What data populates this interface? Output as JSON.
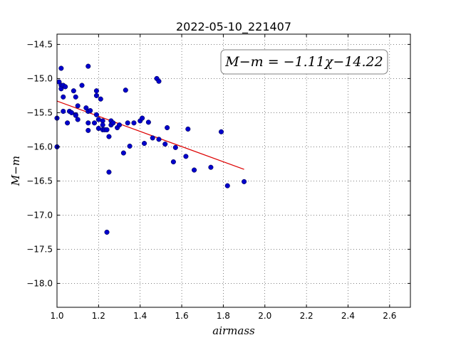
{
  "chart_data": {
    "type": "scatter",
    "title": "2022-05-10_221407",
    "xlabel": "airmass",
    "ylabel": "M−m",
    "xlim": [
      1.0,
      2.7
    ],
    "ylim": [
      -18.35,
      -14.35
    ],
    "y_inverted": true,
    "grid": true,
    "grid_style": "dotted",
    "x_ticks": [
      "1.0",
      "1.2",
      "1.4",
      "1.6",
      "1.8",
      "2.0",
      "2.2",
      "2.4",
      "2.6"
    ],
    "x_tick_values": [
      1.0,
      1.2,
      1.4,
      1.6,
      1.8,
      2.0,
      2.2,
      2.4,
      2.6
    ],
    "y_ticks": [
      "−14.5",
      "−15.0",
      "−15.5",
      "−16.0",
      "−16.5",
      "−17.0",
      "−17.5",
      "−18.0"
    ],
    "y_tick_values": [
      -14.5,
      -15.0,
      -15.5,
      -16.0,
      -16.5,
      -17.0,
      -17.5,
      -18.0
    ],
    "annotation": "M−m = −1.11χ−14.22",
    "annotation_position": "top-right",
    "points_color": "#0000cc",
    "fit_color": "#dd0000",
    "series": [
      {
        "kind": "points",
        "x": [
          1.0,
          1.0,
          1.01,
          1.02,
          1.02,
          1.02,
          1.03,
          1.03,
          1.03,
          1.04,
          1.05,
          1.06,
          1.07,
          1.08,
          1.09,
          1.09,
          1.09,
          1.1,
          1.1,
          1.12,
          1.14,
          1.15,
          1.15,
          1.15,
          1.15,
          1.16,
          1.18,
          1.19,
          1.19,
          1.19,
          1.2,
          1.2,
          1.21,
          1.22,
          1.22,
          1.22,
          1.23,
          1.24,
          1.24,
          1.25,
          1.25,
          1.26,
          1.26,
          1.27,
          1.29,
          1.3,
          1.32,
          1.33,
          1.34,
          1.35,
          1.37,
          1.4,
          1.41,
          1.42,
          1.44,
          1.46,
          1.48,
          1.49,
          1.49,
          1.52,
          1.53,
          1.56,
          1.57,
          1.62,
          1.63,
          1.66,
          1.74,
          1.79,
          1.82,
          1.9
        ],
        "y": [
          -16.0,
          -15.58,
          -15.05,
          -15.1,
          -15.15,
          -14.85,
          -15.27,
          -15.48,
          -15.1,
          -15.12,
          -15.65,
          -15.48,
          -15.5,
          -15.18,
          -15.27,
          -15.53,
          -15.54,
          -15.6,
          -15.4,
          -15.1,
          -15.43,
          -15.48,
          -15.65,
          -15.76,
          -14.82,
          -15.47,
          -15.65,
          -15.25,
          -15.18,
          -15.53,
          -15.6,
          -15.73,
          -15.3,
          -15.62,
          -15.68,
          -15.75,
          -15.75,
          -15.75,
          -17.25,
          -15.85,
          -16.37,
          -15.62,
          -15.68,
          -15.65,
          -15.72,
          -15.68,
          -16.09,
          -15.17,
          -15.65,
          -15.99,
          -15.65,
          -15.62,
          -15.58,
          -15.95,
          -15.64,
          -15.87,
          -15.0,
          -15.04,
          -15.89,
          -15.96,
          -15.72,
          -16.22,
          -16.01,
          -16.14,
          -15.74,
          -16.34,
          -16.3,
          -15.78,
          -16.57,
          -16.51
        ]
      },
      {
        "kind": "fit",
        "x": [
          1.0,
          1.9
        ],
        "y": [
          -15.33,
          -16.33
        ]
      }
    ]
  }
}
